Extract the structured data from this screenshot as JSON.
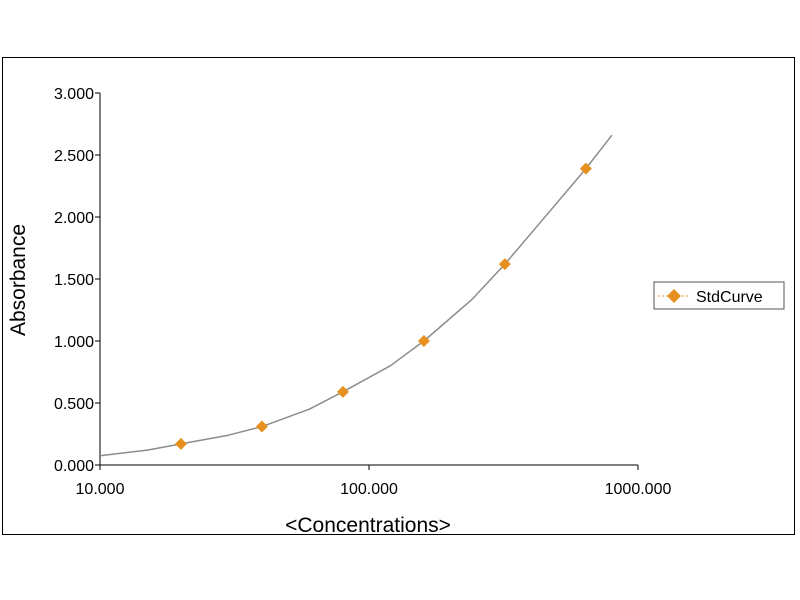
{
  "chart_data": {
    "type": "scatter",
    "x_scale": "log",
    "xlabel": "<Concentrations>",
    "ylabel": "Absorbance",
    "xlim": [
      10,
      1000
    ],
    "ylim": [
      0,
      3
    ],
    "x_ticks": [
      10,
      100,
      1000
    ],
    "x_tick_labels": [
      "10.000",
      "100.000",
      "1000.000"
    ],
    "y_ticks": [
      0,
      0.5,
      1,
      1.5,
      2,
      2.5,
      3
    ],
    "y_tick_labels": [
      "0.000",
      "0.500",
      "1.000",
      "1.500",
      "2.000",
      "2.500",
      "3.000"
    ],
    "grid": false,
    "legend_position": "right",
    "series": [
      {
        "name": "StdCurve",
        "color": "#e8901f",
        "marker": "diamond",
        "points": [
          {
            "x": 20,
            "y": 0.17
          },
          {
            "x": 40,
            "y": 0.31
          },
          {
            "x": 80,
            "y": 0.59
          },
          {
            "x": 160,
            "y": 1.0
          },
          {
            "x": 320,
            "y": 1.62
          },
          {
            "x": 640,
            "y": 2.39
          }
        ],
        "fit_curve": {
          "color": "#8c8c8c",
          "x": [
            10,
            15,
            20,
            30,
            40,
            60,
            80,
            120,
            160,
            240,
            320,
            480,
            640,
            800
          ],
          "y": [
            0.075,
            0.12,
            0.17,
            0.24,
            0.31,
            0.45,
            0.59,
            0.8,
            1.0,
            1.33,
            1.62,
            2.07,
            2.39,
            2.66
          ]
        }
      }
    ]
  }
}
